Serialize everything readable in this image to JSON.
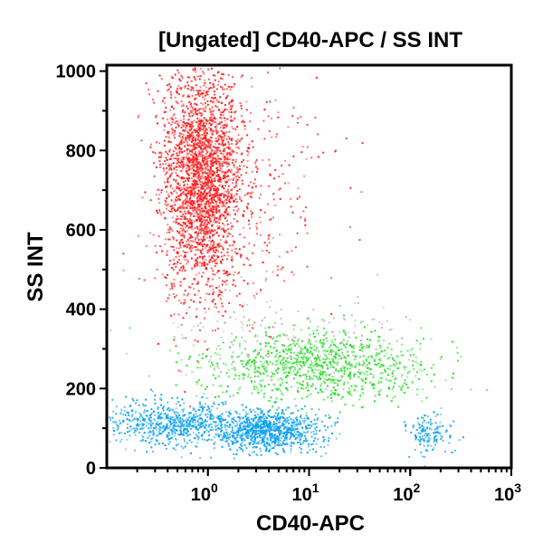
{
  "chart_data": {
    "type": "scatter",
    "title": "[Ungated] CD40-APC / SS INT",
    "xlabel": "CD40-APC",
    "ylabel": "SS INT",
    "xscale": "log",
    "xlim": [
      0.1,
      1000
    ],
    "ylim": [
      0,
      1015
    ],
    "x_ticks": [
      {
        "base": "10",
        "exp": "0",
        "value": 1
      },
      {
        "base": "10",
        "exp": "1",
        "value": 10
      },
      {
        "base": "10",
        "exp": "2",
        "value": 100
      },
      {
        "base": "10",
        "exp": "3",
        "value": 1000
      }
    ],
    "y_ticks": [
      "0",
      "200",
      "400",
      "600",
      "800",
      "1000"
    ],
    "y_tick_values": [
      0,
      200,
      400,
      600,
      800,
      1000
    ],
    "grid": false,
    "legend": "none",
    "populations": [
      {
        "color": "#ff1a1a",
        "x_center": 0.85,
        "x_spread_decades": 0.2,
        "y_center": 720,
        "y_spread": 140,
        "count": 2600
      },
      {
        "color": "#ff1a1a",
        "x_center": 2.5,
        "x_spread_decades": 0.45,
        "y_center": 700,
        "y_spread": 170,
        "count": 250
      },
      {
        "color": "#22dd22",
        "x_center": 12,
        "x_spread_decades": 0.55,
        "y_center": 260,
        "y_spread": 45,
        "count": 1000
      },
      {
        "color": "#0aa0f0",
        "x_center": 0.5,
        "x_spread_decades": 0.35,
        "y_center": 115,
        "y_spread": 28,
        "count": 700
      },
      {
        "color": "#0aa0f0",
        "x_center": 3.8,
        "x_spread_decades": 0.25,
        "y_center": 95,
        "y_spread": 25,
        "count": 900
      },
      {
        "color": "#0aa0f0",
        "x_center": 150,
        "x_spread_decades": 0.12,
        "y_center": 90,
        "y_spread": 25,
        "count": 150
      },
      {
        "color": "#bbbbbb",
        "x_center": 5,
        "x_spread_decades": 0.7,
        "y_center": 340,
        "y_spread": 60,
        "count": 180
      }
    ]
  }
}
